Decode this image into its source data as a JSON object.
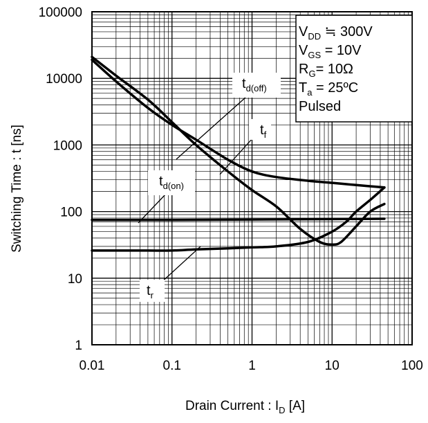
{
  "chart_data": {
    "type": "line",
    "xscale": "log",
    "yscale": "log",
    "xlim": [
      0.01,
      100
    ],
    "ylim": [
      1,
      100000
    ],
    "grid": true,
    "xlabel": {
      "main": "Drain Current : I",
      "sub": "D",
      "post": " [A]"
    },
    "ylabel": "Switching Time : t [ns]",
    "xticks": [
      {
        "value": 0.01,
        "label": "0.01"
      },
      {
        "value": 0.1,
        "label": "0.1"
      },
      {
        "value": 1,
        "label": "1"
      },
      {
        "value": 10,
        "label": "10"
      },
      {
        "value": 100,
        "label": "100"
      }
    ],
    "yticks": [
      {
        "value": 1,
        "label": "1"
      },
      {
        "value": 10,
        "label": "10"
      },
      {
        "value": 100,
        "label": "100"
      },
      {
        "value": 1000,
        "label": "1000"
      },
      {
        "value": 10000,
        "label": "10000"
      },
      {
        "value": 100000,
        "label": "100000"
      }
    ],
    "conditions": [
      {
        "main": "V",
        "sub": "DD",
        "post": " ≒ 300V"
      },
      {
        "main": "V",
        "sub": "GS",
        "post": " = 10V"
      },
      {
        "main": "R",
        "sub": "G",
        "post": "= 10Ω"
      },
      {
        "main": "T",
        "sub": "a",
        "post": " = 25ºC"
      },
      {
        "main": "Pulsed",
        "sub": "",
        "post": ""
      }
    ],
    "series": [
      {
        "name": {
          "main": "t",
          "sub": "d(off)"
        },
        "x": [
          0.01,
          0.02,
          0.05,
          0.1,
          0.2,
          0.5,
          1,
          2,
          5,
          10,
          20,
          45
        ],
        "y": [
          19000,
          9000,
          3600,
          2000,
          1200,
          600,
          400,
          330,
          290,
          270,
          250,
          230
        ]
      },
      {
        "name": {
          "main": "t",
          "sub": "f"
        },
        "x": [
          0.01,
          0.02,
          0.05,
          0.1,
          0.2,
          0.5,
          1,
          2,
          4,
          7,
          10,
          13,
          20,
          30,
          45
        ],
        "y": [
          21000,
          11000,
          4800,
          2200,
          1000,
          400,
          210,
          120,
          55,
          35,
          32,
          35,
          60,
          100,
          130
        ]
      },
      {
        "name": {
          "main": "t",
          "sub": "d(on)"
        },
        "x": [
          0.01,
          0.1,
          1,
          10,
          45
        ],
        "y": [
          75,
          75,
          76,
          77,
          78
        ]
      },
      {
        "name": {
          "main": "t",
          "sub": "r"
        },
        "x": [
          0.01,
          0.02,
          0.05,
          0.1,
          0.2,
          0.5,
          1,
          2,
          5,
          10,
          15,
          20,
          30,
          45
        ],
        "y": [
          26,
          26,
          26,
          26,
          27,
          28,
          29,
          30,
          35,
          50,
          70,
          100,
          150,
          230
        ]
      }
    ]
  }
}
